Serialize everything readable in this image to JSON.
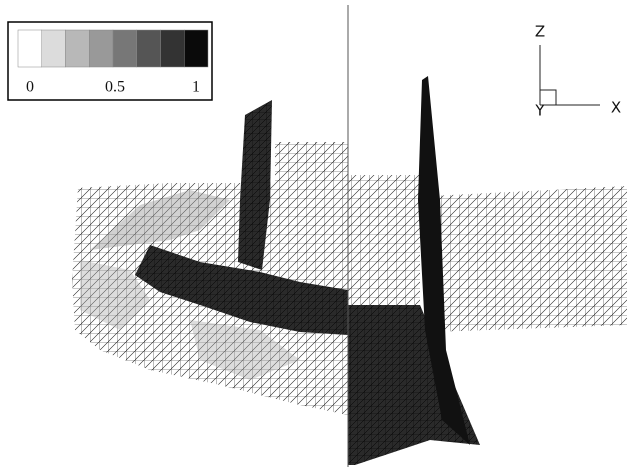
{
  "colorbar": {
    "colors": [
      "#ffffff",
      "#dcdcdc",
      "#b8b8b8",
      "#999999",
      "#777777",
      "#555555",
      "#333333",
      "#0a0a0a"
    ],
    "labels": [
      "0",
      "0.5",
      "1"
    ]
  },
  "axes": {
    "z": "Z",
    "y": "Y",
    "x": "X"
  }
}
